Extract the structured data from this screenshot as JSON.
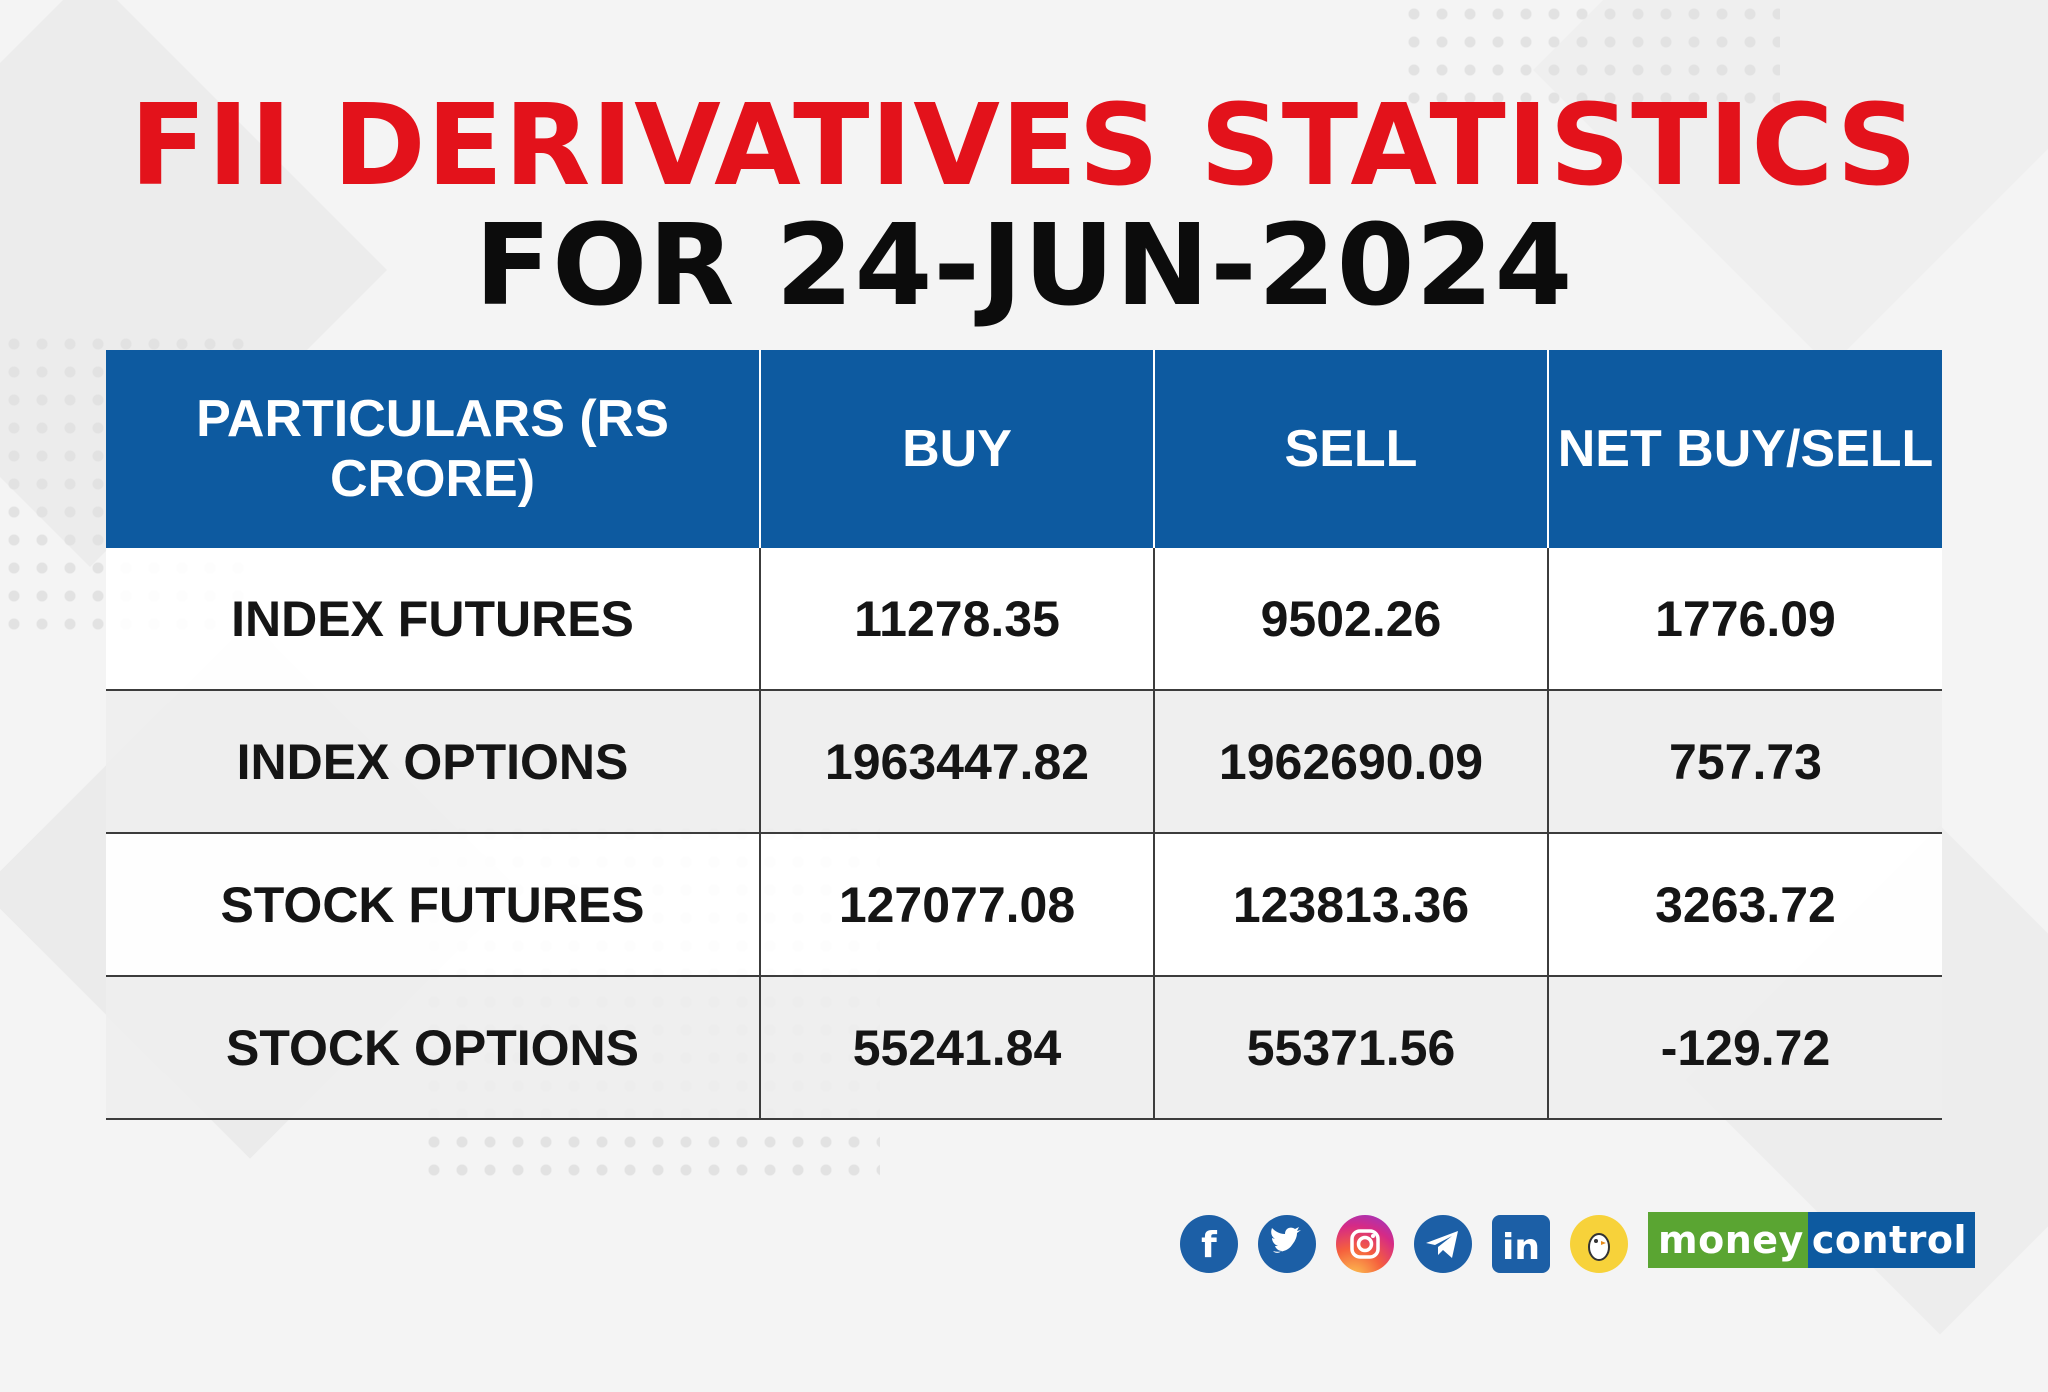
{
  "title": {
    "line1": "FII DERIVATIVES STATISTICS",
    "line2": "FOR 24-JUN-2024"
  },
  "table": {
    "headers": [
      "PARTICULARS (RS CRORE)",
      "BUY",
      "SELL",
      "NET BUY/SELL"
    ],
    "rows": [
      [
        "INDEX FUTURES",
        "11278.35",
        "9502.26",
        "1776.09"
      ],
      [
        "INDEX OPTIONS",
        "1963447.82",
        "1962690.09",
        "757.73"
      ],
      [
        "STOCK FUTURES",
        "127077.08",
        "123813.36",
        "3263.72"
      ],
      [
        "STOCK OPTIONS",
        "55241.84",
        "55371.56",
        "-129.72"
      ]
    ]
  },
  "colors": {
    "title_accent": "#e3121b",
    "header_bg": "#0d5aa0",
    "brand_green": "#5aa532",
    "brand_blue": "#0d5aa0"
  },
  "social_icons": [
    "facebook-icon",
    "twitter-icon",
    "instagram-icon",
    "telegram-icon",
    "linkedin-icon",
    "koo-icon"
  ],
  "brand": {
    "part1": "money",
    "part2": "control"
  }
}
